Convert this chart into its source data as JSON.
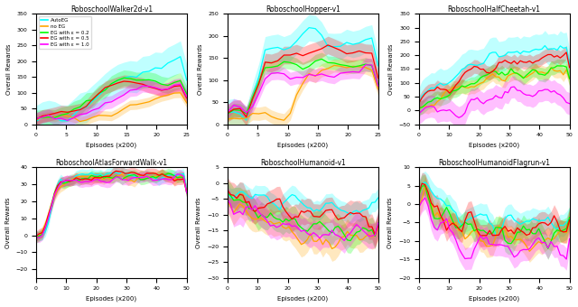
{
  "titles": [
    "RoboschoolWalker2d-v1",
    "RoboschoolHopper-v1",
    "RoboschoolHalfCheetah-v1",
    "RoboschoolAtlasForwardWalk-v1",
    "RoboschoolHumanoid-v1",
    "RoboschoolHumanoidFlagrun-v1"
  ],
  "legend_labels": [
    "AutoEG",
    "no EG",
    "EG with ε = 0.2",
    "EG with ε = 0.5",
    "EG with ε = 1.0"
  ],
  "colors": [
    "cyan",
    "orange",
    "lime",
    "red",
    "magenta"
  ],
  "xlabel": "Episodes (x200)",
  "ylabel": "Overall Rewards",
  "subplots": [
    {
      "xlim": [
        0,
        25
      ],
      "ylim": [
        0,
        350
      ],
      "xticks": [
        0,
        5,
        10,
        15,
        20,
        25
      ]
    },
    {
      "xlim": [
        0,
        25
      ],
      "ylim": [
        0,
        250
      ],
      "xticks": [
        0,
        5,
        10,
        15,
        20,
        25
      ]
    },
    {
      "xlim": [
        0,
        50
      ],
      "ylim": [
        -50,
        350
      ],
      "xticks": [
        0,
        10,
        20,
        30,
        40,
        50
      ]
    },
    {
      "xlim": [
        0,
        50
      ],
      "ylim": [
        -25,
        40
      ],
      "xticks": [
        0,
        10,
        20,
        30,
        40,
        50
      ]
    },
    {
      "xlim": [
        0,
        50
      ],
      "ylim": [
        -30,
        5
      ],
      "xticks": [
        0,
        10,
        20,
        30,
        40,
        50
      ]
    },
    {
      "xlim": [
        0,
        50
      ],
      "ylim": [
        -20,
        10
      ],
      "xticks": [
        0,
        10,
        20,
        30,
        40,
        50
      ]
    }
  ]
}
